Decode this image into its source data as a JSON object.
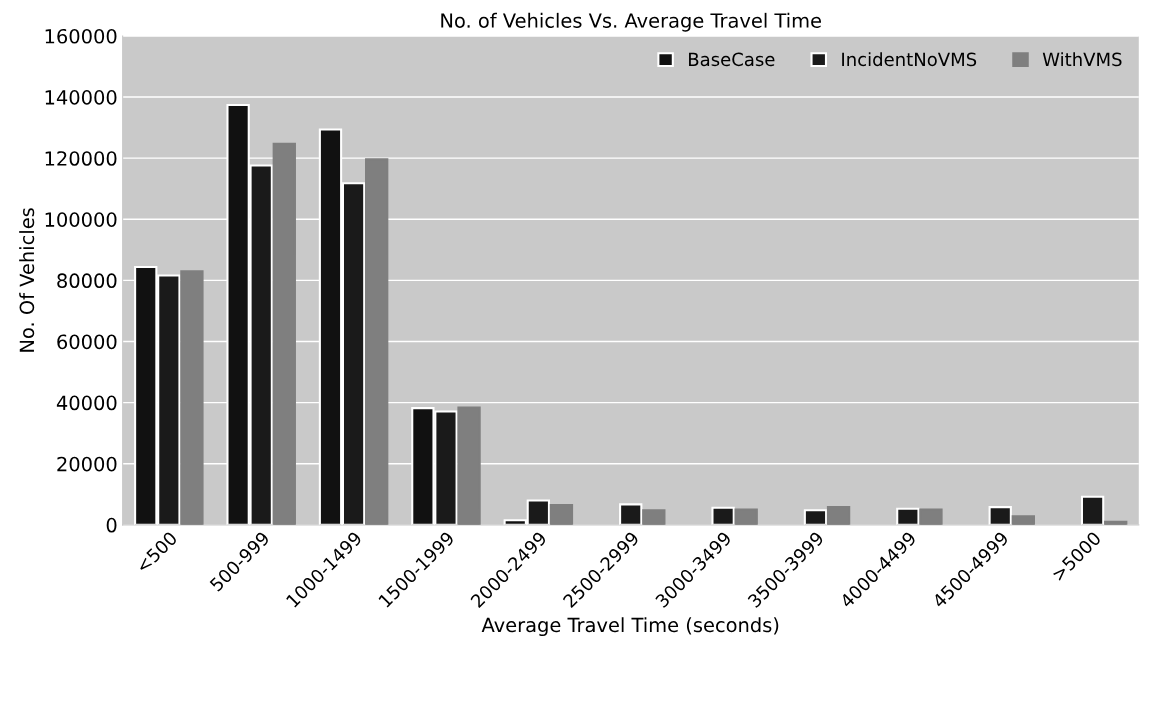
{
  "chart_data": {
    "type": "bar",
    "title": "No. of Vehicles Vs. Average Travel Time",
    "xlabel": "Average Travel Time (seconds)",
    "ylabel": "No. Of Vehicles",
    "categories": [
      "<500",
      "500-999",
      "1000-1499",
      "1500-1999",
      "2000-2499",
      "2500-2999",
      "3000-3499",
      "3500-3999",
      "4000-4499",
      "4500-4999",
      ">5000"
    ],
    "series": [
      {
        "name": "BaseCase",
        "color": "#111111",
        "values": [
          84400,
          137400,
          129400,
          38200,
          1500,
          null,
          null,
          null,
          null,
          null,
          null
        ]
      },
      {
        "name": "IncidentNoVMS",
        "color": "#1a1a1a",
        "values": [
          81600,
          117600,
          111800,
          37100,
          8000,
          6700,
          5600,
          4800,
          5300,
          5800,
          9200
        ]
      },
      {
        "name": "WithVMS",
        "color": "#7f7f7f",
        "values": [
          83000,
          124700,
          119600,
          38400,
          6500,
          4800,
          5000,
          5800,
          5000,
          2800,
          1000
        ]
      }
    ],
    "ylim": [
      0,
      160000
    ],
    "yticks": [
      0,
      20000,
      40000,
      60000,
      80000,
      100000,
      120000,
      140000,
      160000
    ],
    "grid": "y",
    "legend": "top right"
  }
}
